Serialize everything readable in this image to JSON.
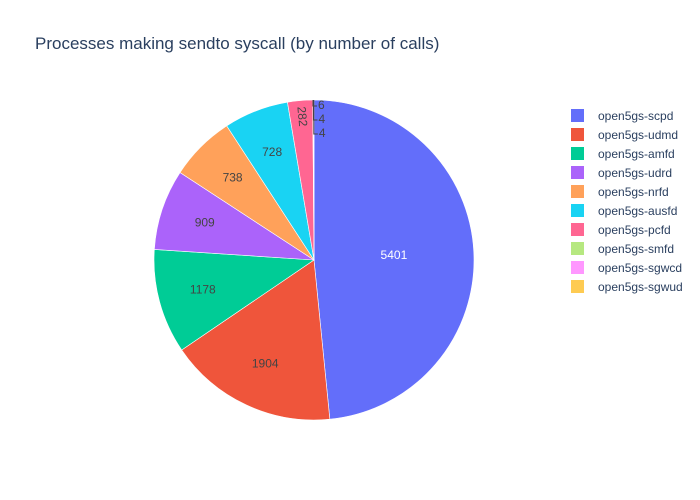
{
  "chart_data": {
    "type": "pie",
    "title": "Processes making sendto syscall (by number of calls)",
    "slices": [
      {
        "label": "open5gs-scpd",
        "value": 5401,
        "color": "#636efa"
      },
      {
        "label": "open5gs-udmd",
        "value": 1904,
        "color": "#EF553B"
      },
      {
        "label": "open5gs-amfd",
        "value": 1178,
        "color": "#00cc96"
      },
      {
        "label": "open5gs-udrd",
        "value": 909,
        "color": "#ab63fa"
      },
      {
        "label": "open5gs-nrfd",
        "value": 738,
        "color": "#FFA15A"
      },
      {
        "label": "open5gs-ausfd",
        "value": 728,
        "color": "#19d3f3"
      },
      {
        "label": "open5gs-pcfd",
        "value": 282,
        "color": "#FF6692"
      },
      {
        "label": "open5gs-smfd",
        "value": 6,
        "color": "#B6E880"
      },
      {
        "label": "open5gs-sgwcd",
        "value": 4,
        "color": "#FF97FF"
      },
      {
        "label": "open5gs-sgwud",
        "value": 4,
        "color": "#FECB52"
      }
    ],
    "legend_position": "right"
  }
}
